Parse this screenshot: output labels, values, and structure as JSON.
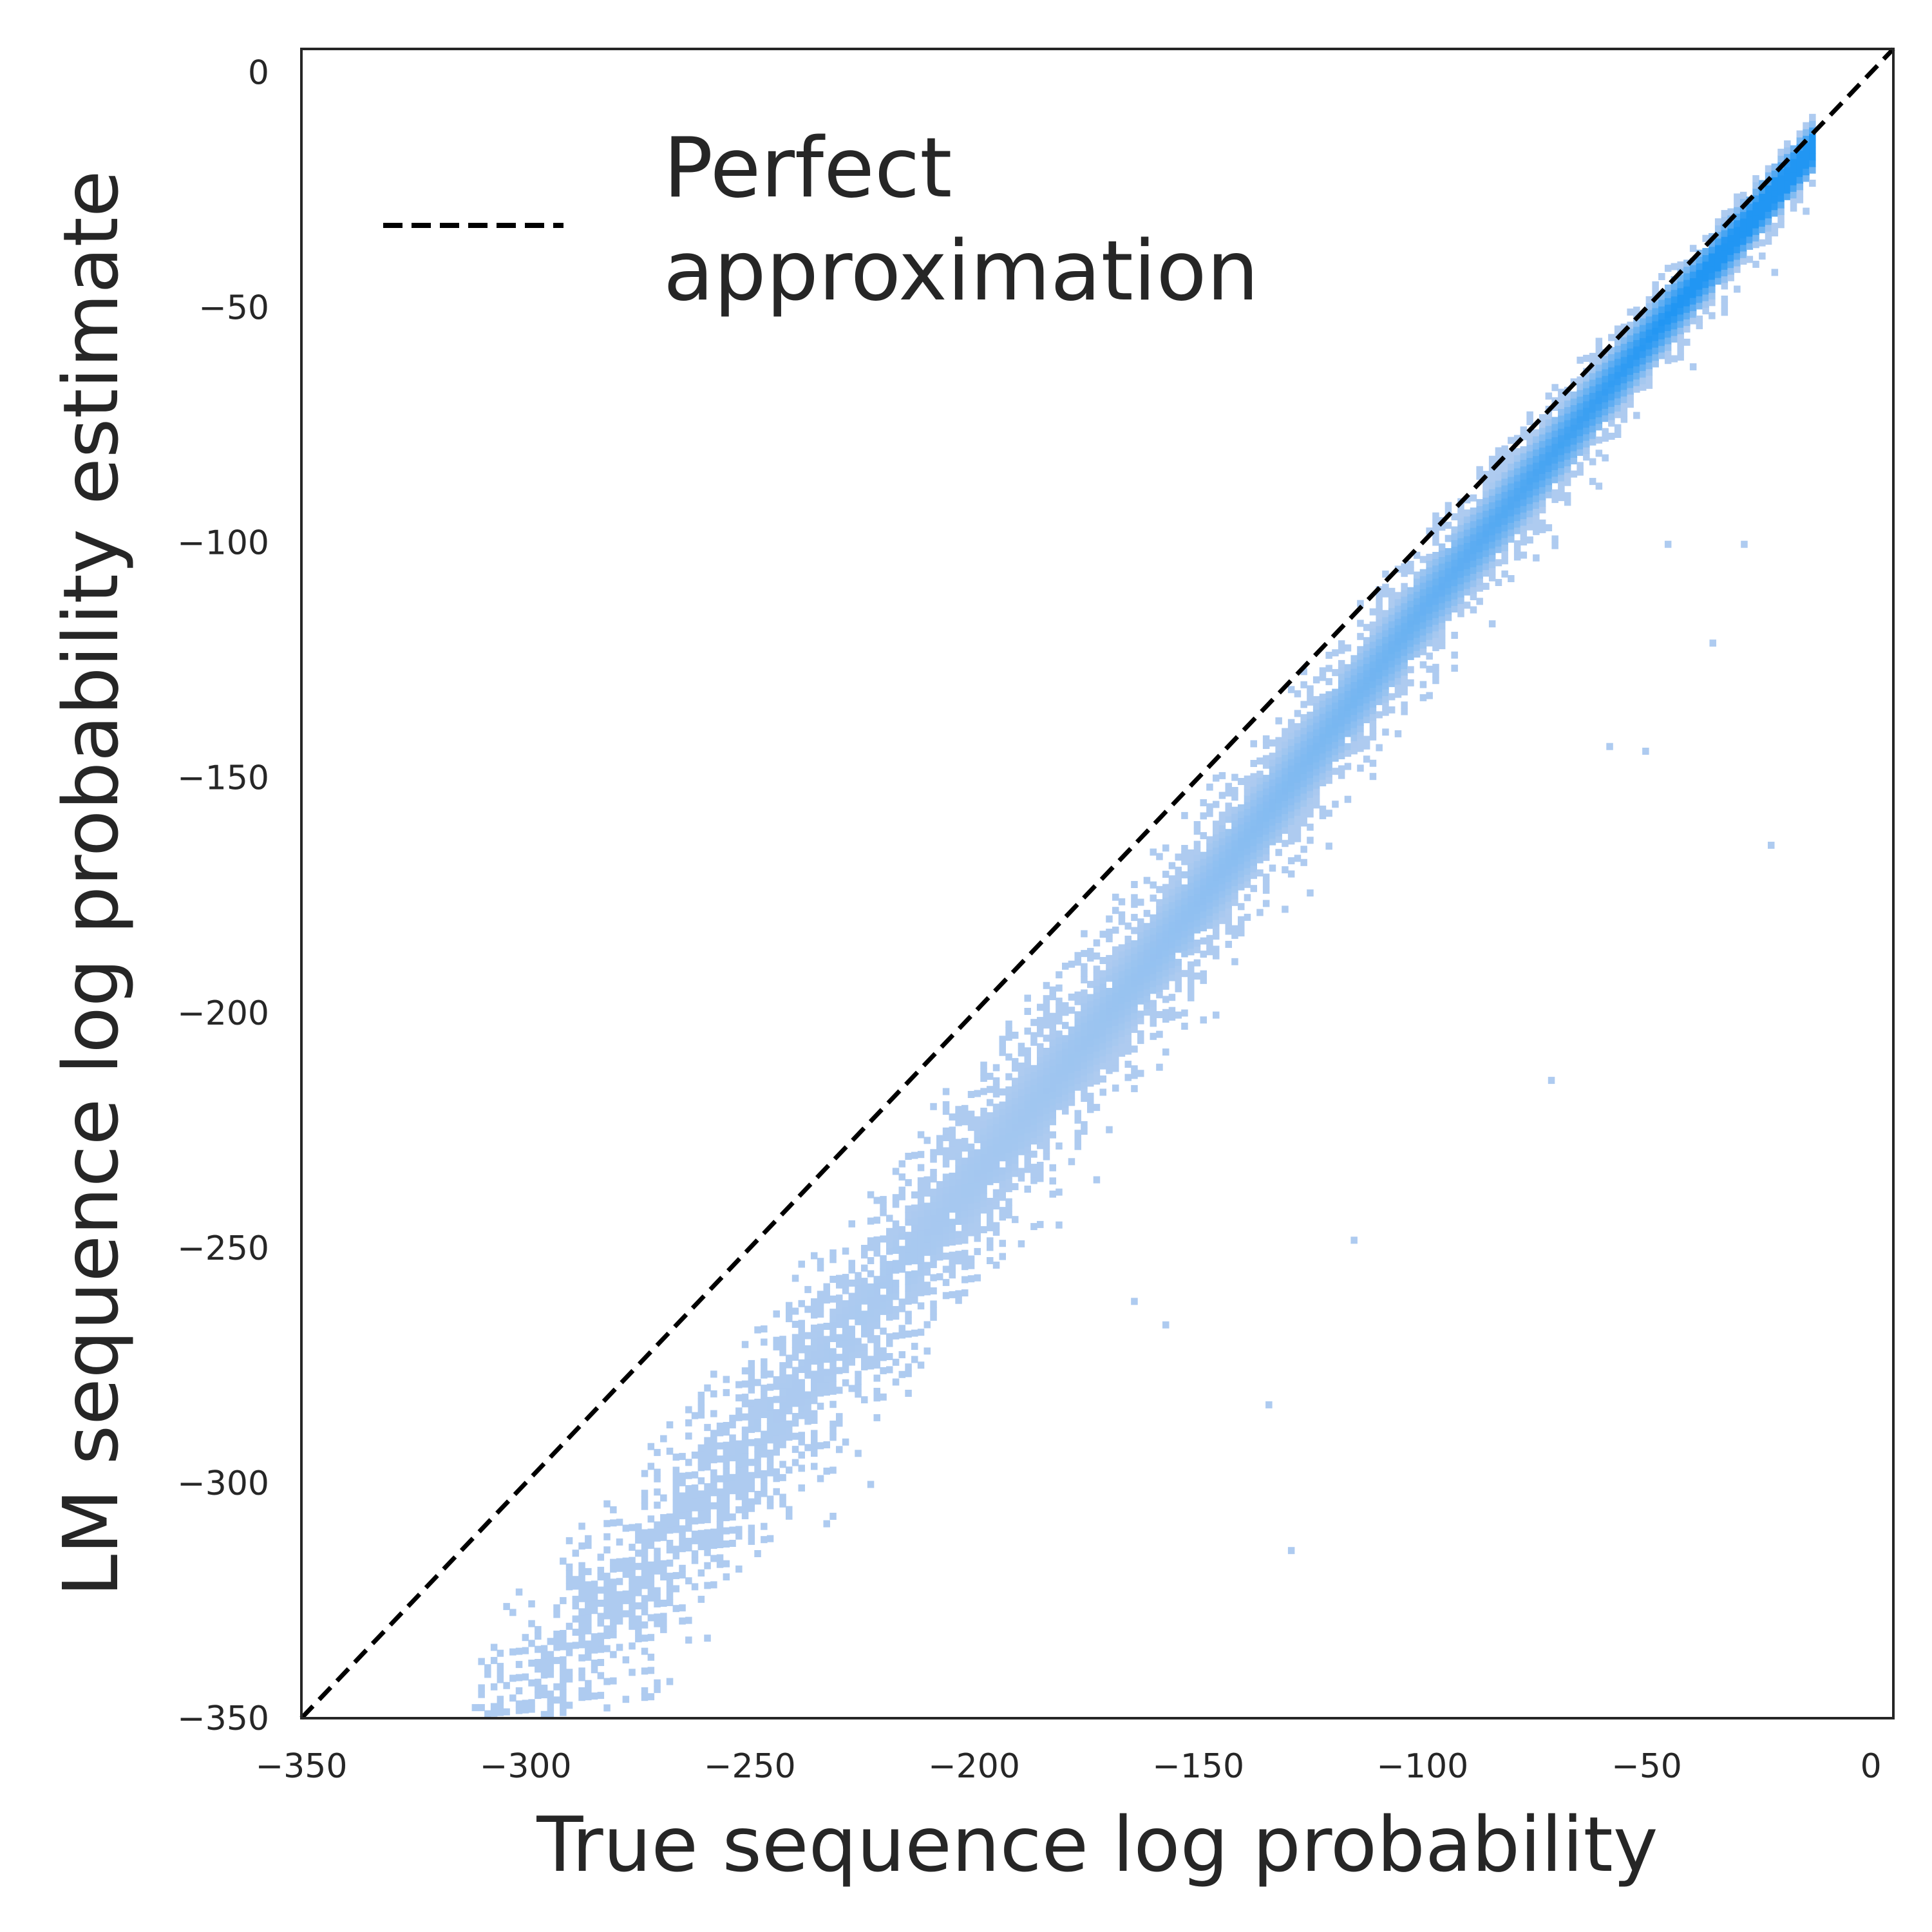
{
  "chart_data": {
    "type": "heatmap",
    "xlabel": "True sequence log probability",
    "ylabel": "LM sequence log probability estimate",
    "xlim": [
      -350,
      5
    ],
    "ylim": [
      -350,
      5
    ],
    "xticks": [
      -350,
      -300,
      -250,
      -200,
      -150,
      -100,
      -50,
      0
    ],
    "yticks": [
      -350,
      -300,
      -250,
      -200,
      -150,
      -100,
      -50,
      0
    ],
    "xtick_labels": [
      "−350",
      "−300",
      "−250",
      "−200",
      "−150",
      "−100",
      "−50",
      "0"
    ],
    "ytick_labels": [
      "−350",
      "−300",
      "−250",
      "−200",
      "−150",
      "−100",
      "−50",
      "0"
    ],
    "grid": false,
    "legend": {
      "placement": "upper-left",
      "entries": [
        {
          "label_lines": [
            "Perfect",
            "approximation"
          ],
          "style": "dashed",
          "color": "#000000"
        }
      ]
    },
    "reference_line": {
      "from": [
        -350,
        -350
      ],
      "to": [
        5,
        5
      ],
      "style": "dashed",
      "color": "#000000"
    },
    "density": {
      "x_range": [
        -312,
        -13
      ],
      "bin_width": 1.4,
      "low_color": "#aecbf0",
      "high_color": "#2196f3",
      "band_center_offset": [
        {
          "x": -310,
          "offset": -48
        },
        {
          "x": -250,
          "offset": -42
        },
        {
          "x": -200,
          "offset": -35
        },
        {
          "x": -150,
          "offset": -26
        },
        {
          "x": -100,
          "offset": -14
        },
        {
          "x": -50,
          "offset": -7
        },
        {
          "x": -13,
          "offset": -3
        }
      ],
      "band_half_width": [
        {
          "x": -310,
          "value": 16
        },
        {
          "x": -200,
          "value": 16
        },
        {
          "x": -100,
          "value": 11
        },
        {
          "x": -13,
          "value": 6
        }
      ],
      "outliers": [
        {
          "x": -135,
          "y": -284
        },
        {
          "x": -116,
          "y": -249
        },
        {
          "x": -72,
          "y": -215
        },
        {
          "x": -130,
          "y": -315
        },
        {
          "x": -59,
          "y": -144
        },
        {
          "x": -51,
          "y": -145
        },
        {
          "x": -23,
          "y": -165
        },
        {
          "x": -36,
          "y": -122
        },
        {
          "x": -29,
          "y": -101
        },
        {
          "x": -46,
          "y": -101
        },
        {
          "x": -165,
          "y": -262
        },
        {
          "x": -158,
          "y": -267
        }
      ]
    }
  }
}
